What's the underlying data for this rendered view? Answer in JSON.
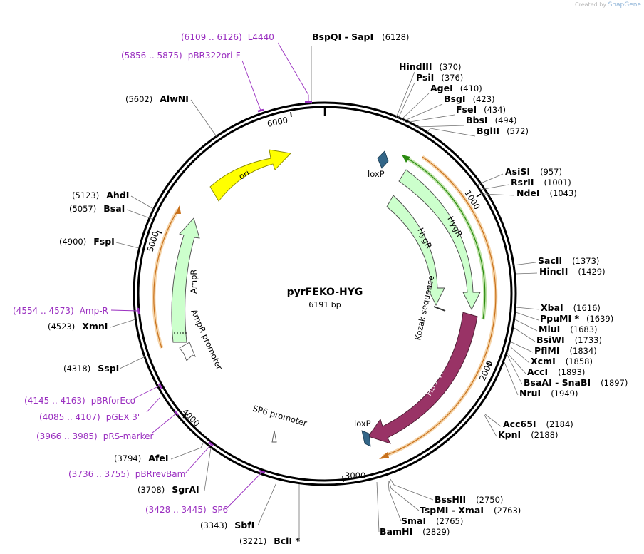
{
  "watermark": {
    "prefix": "Created by",
    "brand": "SnapGene"
  },
  "plasmid": {
    "name": "pyrFEKO-HYG",
    "length_label": "6191 bp",
    "length": 6191
  },
  "ticks": [
    "1000",
    "2000",
    "3000",
    "4000",
    "5000",
    "6000"
  ],
  "colors": {
    "ori": "#ffff00",
    "ampr": "#ccffcc",
    "hygr": "#ccffcc",
    "hsvtk": "#993366",
    "loxp": "#336688",
    "primer": "#9a2fc0",
    "orange_arc": "#e8a040",
    "green_arc": "#2a8a10"
  },
  "sites": [
    {
      "name": "BspQI",
      "name2": "SapI",
      "pos": "(6128)"
    },
    {
      "name": "HindIII",
      "pos": "(370)"
    },
    {
      "name": "PsiI",
      "pos": "(376)"
    },
    {
      "name": "AgeI",
      "pos": "(410)"
    },
    {
      "name": "BsgI",
      "pos": "(423)"
    },
    {
      "name": "FseI",
      "pos": "(434)"
    },
    {
      "name": "BbsI",
      "pos": "(494)"
    },
    {
      "name": "BglII",
      "pos": "(572)"
    },
    {
      "name": "AsiSI",
      "pos": "(957)"
    },
    {
      "name": "RsrII",
      "pos": "(1001)"
    },
    {
      "name": "NdeI",
      "pos": "(1043)"
    },
    {
      "name": "SacII",
      "pos": "(1373)"
    },
    {
      "name": "HincII",
      "pos": "(1429)"
    },
    {
      "name": "XbaI",
      "pos": "(1616)"
    },
    {
      "name": "PpuMI *",
      "pos": "(1639)"
    },
    {
      "name": "MluI",
      "pos": "(1683)"
    },
    {
      "name": "BsiWI",
      "pos": "(1733)"
    },
    {
      "name": "PflMI",
      "pos": "(1834)"
    },
    {
      "name": "XcmI",
      "pos": "(1858)"
    },
    {
      "name": "AccI",
      "pos": "(1893)"
    },
    {
      "name": "BsaAI",
      "name2": "SnaBI",
      "pos": "(1897)"
    },
    {
      "name": "NruI",
      "pos": "(1949)"
    },
    {
      "name": "Acc65I",
      "pos": "(2184)"
    },
    {
      "name": "KpnI",
      "pos": "(2188)"
    },
    {
      "name": "BssHII",
      "pos": "(2750)"
    },
    {
      "name": "TspMI",
      "name2": "XmaI",
      "pos": "(2763)"
    },
    {
      "name": "SmaI",
      "pos": "(2765)"
    },
    {
      "name": "BamHI",
      "pos": "(2829)"
    },
    {
      "name": "BclI *",
      "pos": "(3221)"
    },
    {
      "name": "SbfI",
      "pos": "(3343)"
    },
    {
      "name": "SgrAI",
      "pos": "(3708)"
    },
    {
      "name": "AfeI",
      "pos": "(3794)"
    },
    {
      "name": "SspI",
      "pos": "(4318)"
    },
    {
      "name": "XmnI",
      "pos": "(4523)"
    },
    {
      "name": "FspI",
      "pos": "(4900)"
    },
    {
      "name": "BsaI",
      "pos": "(5057)"
    },
    {
      "name": "AhdI",
      "pos": "(5123)"
    },
    {
      "name": "AlwNI",
      "pos": "(5602)"
    }
  ],
  "primers": [
    {
      "name": "L4440",
      "pos": "(6109 .. 6126)"
    },
    {
      "name": "pBR322ori-F",
      "pos": "(5856 .. 5875)"
    },
    {
      "name": "Amp-R",
      "pos": "(4554 .. 4573)"
    },
    {
      "name": "pBRforEco",
      "pos": "(4145 .. 4163)"
    },
    {
      "name": "pGEX 3'",
      "pos": "(4085 .. 4107)"
    },
    {
      "name": "pRS-marker",
      "pos": "(3966 .. 3985)"
    },
    {
      "name": "pBRrevBam",
      "pos": "(3736 .. 3755)"
    },
    {
      "name": "SP6",
      "pos": "(3428 .. 3445)"
    }
  ],
  "features": {
    "ori": "ori",
    "ampr": "AmpR",
    "ampr_promoter": "AmpR promoter",
    "hygr_outer": "HygR",
    "hygr_inner": "HygR",
    "hsvtk": "HSV TK",
    "loxp1": "loxP",
    "loxp2": "loxP",
    "kozak": "Kozak sequence",
    "sp6_promoter": "SP6 promoter"
  }
}
